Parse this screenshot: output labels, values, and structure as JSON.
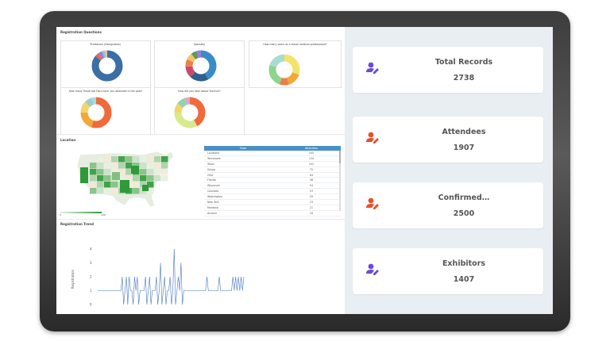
{
  "sections": {
    "registration_questions": "Registration Questions",
    "location": "Location",
    "registration_trend": "Registration Trend"
  },
  "donuts": [
    {
      "title": "Profession (Designation)",
      "colors": [
        "#3a6ea5",
        "#e86a4a",
        "#9b7be0",
        "#7fc8c0",
        "#f2b8a0"
      ],
      "fractions": [
        0.86,
        0.04,
        0.04,
        0.03,
        0.03
      ]
    },
    {
      "title": "Specialty",
      "colors": [
        "#3a8cc8",
        "#2e5f8f",
        "#c84a6a",
        "#e8804a",
        "#f3c36a",
        "#5a9a5a",
        "#9b7be0"
      ],
      "fractions": [
        0.42,
        0.2,
        0.12,
        0.08,
        0.07,
        0.06,
        0.05
      ]
    },
    {
      "title": "How many years as a travel medical professional?",
      "colors": [
        "#f3e36a",
        "#f3a63a",
        "#e8804a",
        "#8fd38f",
        "#a8dcd0"
      ],
      "fractions": [
        0.3,
        0.15,
        0.1,
        0.25,
        0.2
      ]
    },
    {
      "title": "How many Travel Job Fairs have you attended in the past?",
      "colors": [
        "#f06a3a",
        "#f3a63a",
        "#f3d36a",
        "#9bd0c8",
        "#a8d8e8"
      ],
      "fractions": [
        0.55,
        0.2,
        0.12,
        0.08,
        0.05
      ]
    },
    {
      "title": "How did you hear about TravCon?",
      "colors": [
        "#f06a3a",
        "#d8ea8a",
        "#f3d36a",
        "#8fd3b0",
        "#e8a0c8"
      ],
      "fractions": [
        0.42,
        0.33,
        0.1,
        0.1,
        0.05
      ]
    }
  ],
  "map": {
    "legend_min": "0",
    "legend_max": "100",
    "state_colors": [
      "#2e9a3a",
      "#7fbf7f",
      "#c9e0c9",
      "#e8efe0",
      "#f3e8d6",
      "#a8d0a8"
    ]
  },
  "state_table": {
    "headers": [
      "State",
      "Attendees"
    ],
    "rows": [
      [
        "Louisiana",
        "345"
      ],
      [
        "Tennessee",
        "134"
      ],
      [
        "Texas",
        "102"
      ],
      [
        "Illinois",
        "75"
      ],
      [
        "Ohio",
        "64"
      ],
      [
        "Florida",
        "58"
      ],
      [
        "Wisconsin",
        "54"
      ],
      [
        "Colorado",
        "53"
      ],
      [
        "Washington",
        "29"
      ],
      [
        "New York",
        "23"
      ],
      [
        "Montana",
        "21"
      ],
      [
        "Arizona",
        "18"
      ]
    ]
  },
  "trend": {
    "y_label": "Registration",
    "y_ticks": [
      "0",
      "1",
      "2",
      "3",
      "4"
    ],
    "line_color": "#4a78c0",
    "values": [
      1,
      1,
      1,
      1,
      1,
      1,
      1,
      1,
      1,
      1,
      1,
      1,
      1,
      1,
      1,
      1,
      1,
      1,
      2,
      0,
      1,
      2,
      0,
      2,
      1,
      1,
      0,
      2,
      1,
      2,
      0,
      1,
      1,
      1,
      1,
      2,
      0,
      1,
      2,
      0,
      1,
      1,
      1,
      2,
      0,
      1,
      3,
      0,
      1,
      2,
      0,
      1,
      1,
      2,
      0,
      1,
      4,
      0,
      1,
      2,
      1,
      3,
      0,
      1,
      1,
      1,
      1,
      1,
      1,
      1,
      1,
      1,
      1,
      1,
      1,
      1,
      1,
      1,
      1,
      1,
      2,
      1,
      1,
      1,
      1,
      1,
      1,
      1,
      1,
      2,
      1,
      1,
      1,
      1,
      1,
      1,
      1,
      1,
      1,
      2,
      1,
      2,
      1,
      2,
      1,
      2,
      1,
      2
    ]
  },
  "cards": [
    {
      "title": "Total Records",
      "value": "2738",
      "icon_color": "#6a4ad8",
      "icon": "user-edit-icon"
    },
    {
      "title": "Attendees",
      "value": "1907",
      "icon_color": "#e8502a",
      "icon": "user-edit-icon"
    },
    {
      "title": "Confirmed…",
      "value": "2500",
      "icon_color": "#e8502a",
      "icon": "user-edit-icon"
    },
    {
      "title": "Exhibitors",
      "value": "1407",
      "icon_color": "#6a4ad8",
      "icon": "user-edit-icon"
    }
  ]
}
